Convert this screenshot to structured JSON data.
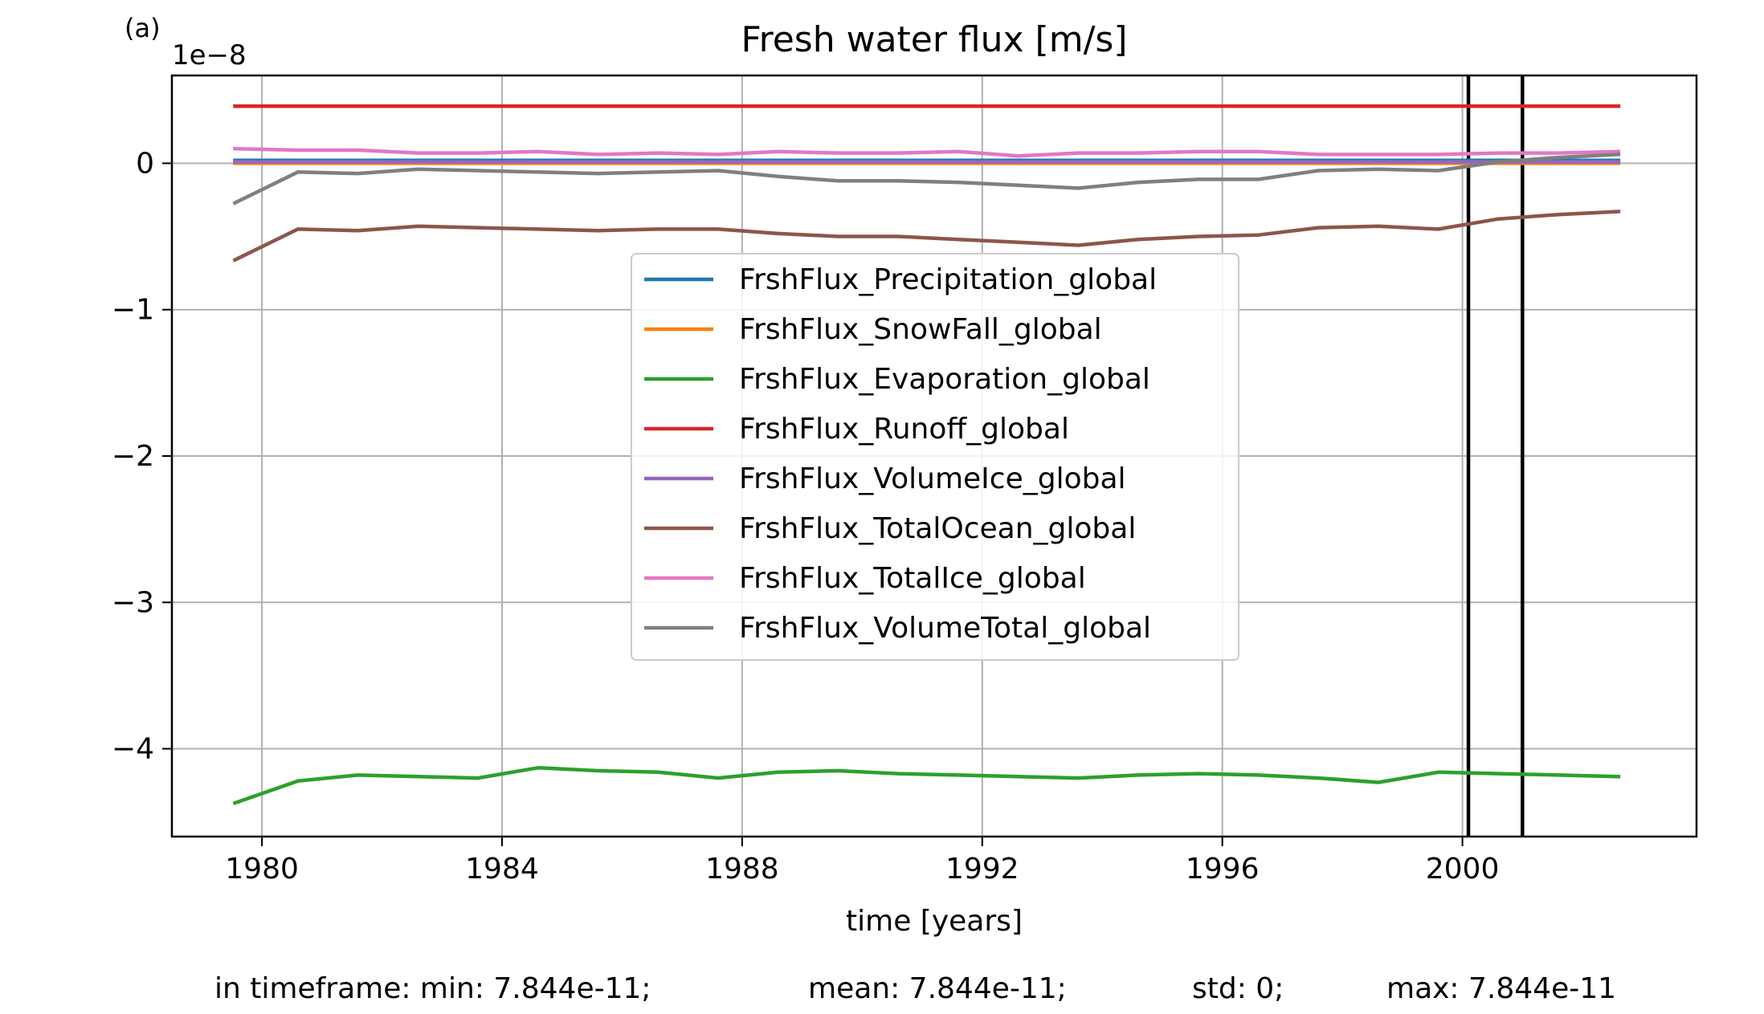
{
  "panel_label": "(a)",
  "stats_line": {
    "min": "in timeframe: min: 7.844e-11;",
    "mean": "mean: 7.844e-11;",
    "std": "std: 0;",
    "max": "max: 7.844e-11"
  },
  "chart_data": {
    "type": "line",
    "title": "Fresh water flux [m/s]",
    "xlabel": "time [years]",
    "ylabel": "",
    "y_offset_label": "1e−8",
    "xlim": [
      1978.5,
      2003.9
    ],
    "ylim": [
      -4.6,
      0.6
    ],
    "x_ticks": [
      1980,
      1984,
      1988,
      1992,
      1996,
      2000
    ],
    "x_tick_labels": [
      "1980",
      "1984",
      "1988",
      "1992",
      "1996",
      "2000"
    ],
    "y_ticks": [
      -4,
      -3,
      -2,
      -1,
      0
    ],
    "y_tick_labels": [
      "−4",
      "−3",
      "−2",
      "−1",
      "0"
    ],
    "grid": true,
    "legend_position": "center",
    "vertical_markers": [
      2000.1,
      2001.0
    ],
    "x": [
      1979.55,
      1980.6,
      1981.6,
      1982.6,
      1983.6,
      1984.6,
      1985.6,
      1986.6,
      1987.6,
      1988.6,
      1989.6,
      1990.6,
      1991.6,
      1992.6,
      1993.6,
      1994.6,
      1995.6,
      1996.6,
      1997.6,
      1998.6,
      1999.6,
      2000.6,
      2001.6,
      2002.6
    ],
    "series": [
      {
        "name": "FrshFlux_Precipitation_global",
        "color": "#1f77b4",
        "values": [
          0.02,
          0.02,
          0.02,
          0.02,
          0.02,
          0.02,
          0.02,
          0.02,
          0.02,
          0.02,
          0.02,
          0.02,
          0.02,
          0.02,
          0.02,
          0.02,
          0.02,
          0.02,
          0.02,
          0.02,
          0.02,
          0.02,
          0.02,
          0.02
        ]
      },
      {
        "name": "FrshFlux_SnowFall_global",
        "color": "#ff7f0e",
        "values": [
          0.0,
          0.0,
          0.0,
          0.0,
          0.0,
          0.0,
          0.0,
          0.0,
          0.0,
          0.0,
          0.0,
          0.0,
          0.0,
          0.0,
          0.0,
          0.0,
          0.0,
          0.0,
          0.0,
          0.0,
          0.0,
          0.0,
          0.0,
          0.0
        ]
      },
      {
        "name": "FrshFlux_Evaporation_global",
        "color": "#2ca02c",
        "values": [
          -4.37,
          -4.22,
          -4.18,
          -4.19,
          -4.2,
          -4.13,
          -4.15,
          -4.16,
          -4.2,
          -4.16,
          -4.15,
          -4.17,
          -4.18,
          -4.19,
          -4.2,
          -4.18,
          -4.17,
          -4.18,
          -4.2,
          -4.23,
          -4.16,
          -4.17,
          -4.18,
          -4.19
        ]
      },
      {
        "name": "FrshFlux_Runoff_global",
        "color": "#d62728",
        "values": [
          0.39,
          0.39,
          0.39,
          0.39,
          0.39,
          0.39,
          0.39,
          0.39,
          0.39,
          0.39,
          0.39,
          0.39,
          0.39,
          0.39,
          0.39,
          0.39,
          0.39,
          0.39,
          0.39,
          0.39,
          0.39,
          0.39,
          0.39,
          0.39
        ]
      },
      {
        "name": "FrshFlux_VolumeIce_global",
        "color": "#9467bd",
        "values": [
          0.01,
          0.01,
          0.01,
          0.01,
          0.01,
          0.01,
          0.01,
          0.01,
          0.01,
          0.01,
          0.01,
          0.01,
          0.01,
          0.01,
          0.01,
          0.01,
          0.01,
          0.01,
          0.01,
          0.01,
          0.01,
          0.01,
          0.01,
          0.01
        ]
      },
      {
        "name": "FrshFlux_TotalOcean_global",
        "color": "#8c564b",
        "values": [
          -0.66,
          -0.45,
          -0.46,
          -0.43,
          -0.44,
          -0.45,
          -0.46,
          -0.45,
          -0.45,
          -0.48,
          -0.5,
          -0.5,
          -0.52,
          -0.54,
          -0.56,
          -0.52,
          -0.5,
          -0.49,
          -0.44,
          -0.43,
          -0.45,
          -0.38,
          -0.35,
          -0.33
        ]
      },
      {
        "name": "FrshFlux_TotalIce_global",
        "color": "#e377c2",
        "values": [
          0.1,
          0.09,
          0.09,
          0.07,
          0.07,
          0.08,
          0.06,
          0.07,
          0.06,
          0.08,
          0.07,
          0.07,
          0.08,
          0.05,
          0.07,
          0.07,
          0.08,
          0.08,
          0.06,
          0.06,
          0.06,
          0.07,
          0.07,
          0.08
        ]
      },
      {
        "name": "FrshFlux_VolumeTotal_global",
        "color": "#7f7f7f",
        "values": [
          -0.27,
          -0.06,
          -0.07,
          -0.04,
          -0.05,
          -0.06,
          -0.07,
          -0.06,
          -0.05,
          -0.09,
          -0.12,
          -0.12,
          -0.13,
          -0.15,
          -0.17,
          -0.13,
          -0.11,
          -0.11,
          -0.05,
          -0.04,
          -0.05,
          0.01,
          0.04,
          0.06
        ]
      }
    ]
  }
}
